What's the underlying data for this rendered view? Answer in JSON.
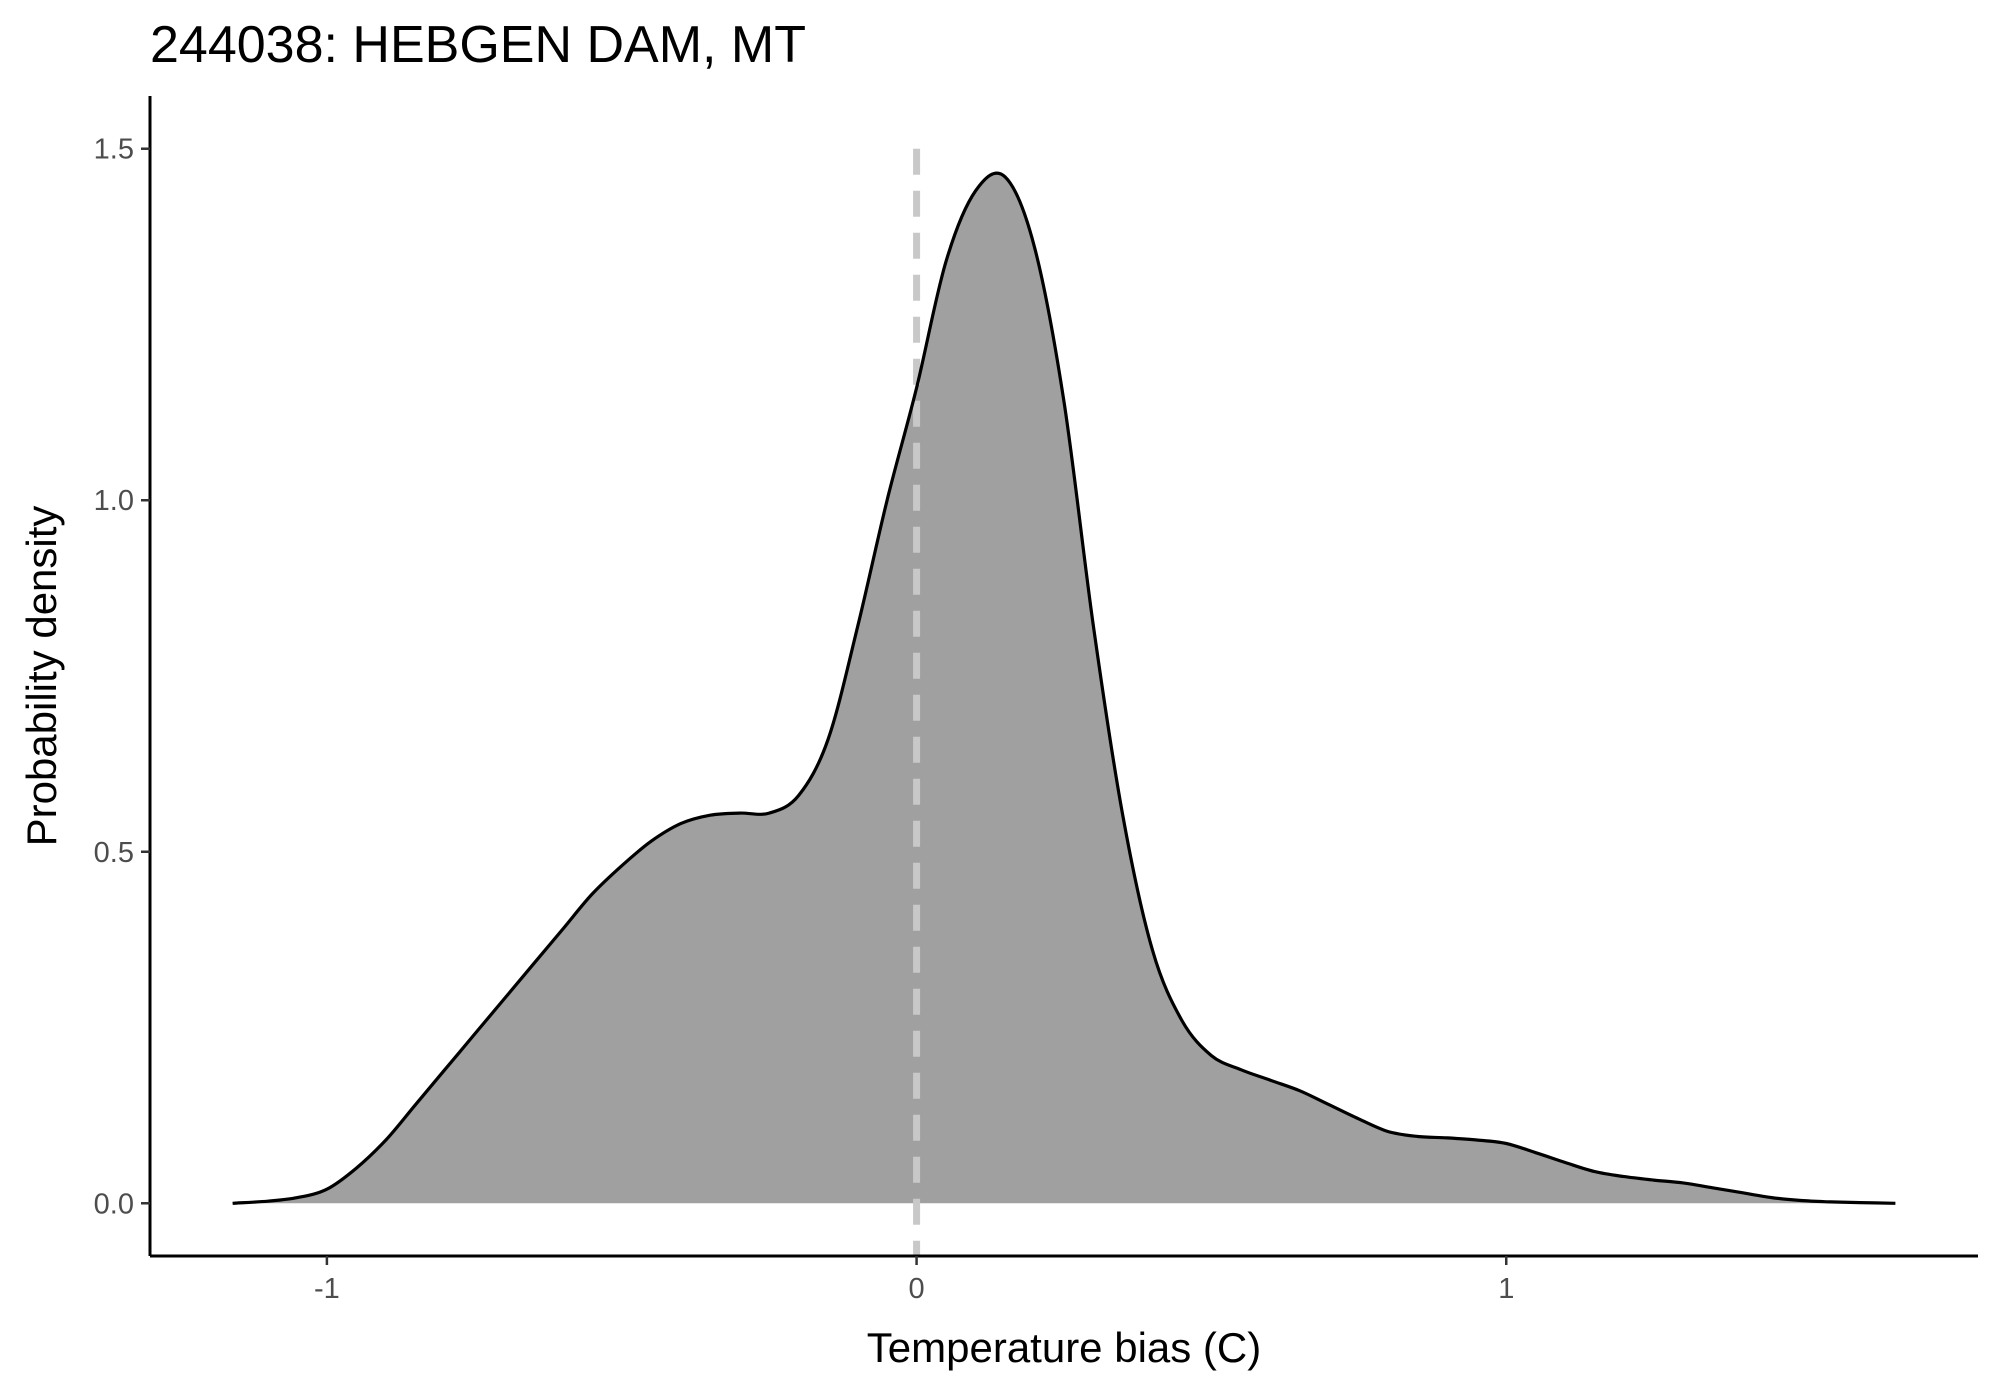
{
  "chart_data": {
    "type": "area",
    "title": "244038: HEBGEN DAM, MT",
    "xlabel": "Temperature bias (C)",
    "ylabel": "Probability density",
    "xlim": [
      -1.3,
      1.8
    ],
    "ylim": [
      -0.075,
      1.575
    ],
    "x_ticks": [
      -1,
      0,
      1
    ],
    "x_tick_labels": [
      "-1",
      "0",
      "1"
    ],
    "y_ticks": [
      0.0,
      0.5,
      1.0,
      1.5
    ],
    "y_tick_labels": [
      "0.0",
      "0.5",
      "1.0",
      "1.5"
    ],
    "grid": false,
    "reference_line": {
      "x": 0,
      "style": "dashed",
      "color": "#c8c8c8"
    },
    "fill_color": "#a0a0a0",
    "line_color": "#000000",
    "series": [
      {
        "x": [
          -1.16,
          -1.1,
          -1.05,
          -1.0,
          -0.95,
          -0.9,
          -0.85,
          -0.8,
          -0.75,
          -0.7,
          -0.65,
          -0.6,
          -0.55,
          -0.5,
          -0.45,
          -0.4,
          -0.35,
          -0.3,
          -0.25,
          -0.2,
          -0.15,
          -0.1,
          -0.05,
          0.0,
          0.05,
          0.1,
          0.15,
          0.2,
          0.25,
          0.3,
          0.35,
          0.4,
          0.45,
          0.5,
          0.55,
          0.6,
          0.65,
          0.7,
          0.75,
          0.8,
          0.85,
          0.9,
          0.95,
          1.0,
          1.05,
          1.1,
          1.15,
          1.2,
          1.25,
          1.3,
          1.35,
          1.4,
          1.45,
          1.5,
          1.55,
          1.6,
          1.66
        ],
        "y": [
          0.0,
          0.003,
          0.008,
          0.02,
          0.05,
          0.09,
          0.14,
          0.19,
          0.24,
          0.29,
          0.34,
          0.39,
          0.44,
          0.48,
          0.515,
          0.54,
          0.552,
          0.555,
          0.555,
          0.58,
          0.66,
          0.82,
          1.0,
          1.16,
          1.34,
          1.44,
          1.46,
          1.36,
          1.14,
          0.82,
          0.55,
          0.36,
          0.26,
          0.21,
          0.19,
          0.175,
          0.16,
          0.14,
          0.12,
          0.102,
          0.095,
          0.093,
          0.09,
          0.085,
          0.072,
          0.058,
          0.045,
          0.038,
          0.033,
          0.029,
          0.022,
          0.015,
          0.008,
          0.004,
          0.002,
          0.001,
          0.0
        ]
      }
    ]
  }
}
